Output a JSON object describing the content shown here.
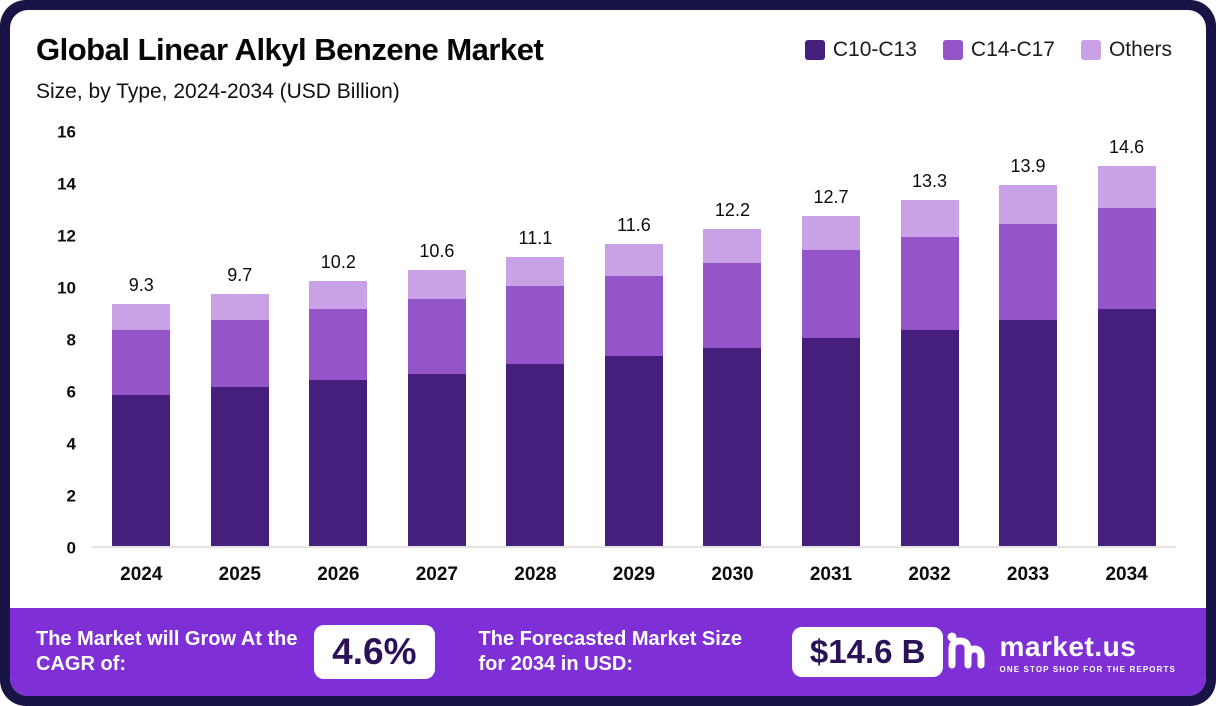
{
  "page": {
    "title": "Global Linear Alkyl Benzene Market",
    "subtitle": "Size, by Type, 2024-2034 (USD Billion)"
  },
  "legend": [
    {
      "label": "C10-C13",
      "color": "#461e7c"
    },
    {
      "label": "C14-C17",
      "color": "#9455c8"
    },
    {
      "label": "Others",
      "color": "#c9a2e6"
    }
  ],
  "chart_data": {
    "type": "bar",
    "stacked": true,
    "title": "Global Linear Alkyl Benzene Market",
    "subtitle": "Size, by Type, 2024-2034 (USD Billion)",
    "xlabel": "",
    "ylabel": "USD Billion",
    "ylim": [
      0,
      16
    ],
    "yticks": [
      0,
      2,
      4,
      6,
      8,
      10,
      12,
      14,
      16
    ],
    "grid": false,
    "legend_position": "top-right",
    "categories": [
      "2024",
      "2025",
      "2026",
      "2027",
      "2028",
      "2029",
      "2030",
      "2031",
      "2032",
      "2033",
      "2034"
    ],
    "series": [
      {
        "name": "C10-C13",
        "color": "#461e7c",
        "values": [
          5.8,
          6.1,
          6.4,
          6.6,
          7.0,
          7.3,
          7.6,
          8.0,
          8.3,
          8.7,
          9.1
        ]
      },
      {
        "name": "C14-C17",
        "color": "#9455c8",
        "values": [
          2.5,
          2.6,
          2.7,
          2.9,
          3.0,
          3.1,
          3.3,
          3.4,
          3.6,
          3.7,
          3.9
        ]
      },
      {
        "name": "Others",
        "color": "#c9a2e6",
        "values": [
          1.0,
          1.0,
          1.1,
          1.1,
          1.1,
          1.2,
          1.3,
          1.3,
          1.4,
          1.5,
          1.6
        ]
      }
    ],
    "totals": [
      9.3,
      9.7,
      10.2,
      10.6,
      11.1,
      11.6,
      12.2,
      12.7,
      13.3,
      13.9,
      14.6
    ]
  },
  "footer": {
    "cagr_label": "The Market will Grow At the CAGR of:",
    "cagr_value": "4.6%",
    "forecast_label": "The Forecasted Market Size for 2034 in USD:",
    "forecast_value": "$14.6 B",
    "brand": "market.us",
    "brand_tagline": "ONE STOP SHOP FOR THE REPORTS"
  },
  "colors": {
    "frame": "#181445",
    "footer_band": "#7e2fd6",
    "pill_text": "#2a1158"
  }
}
